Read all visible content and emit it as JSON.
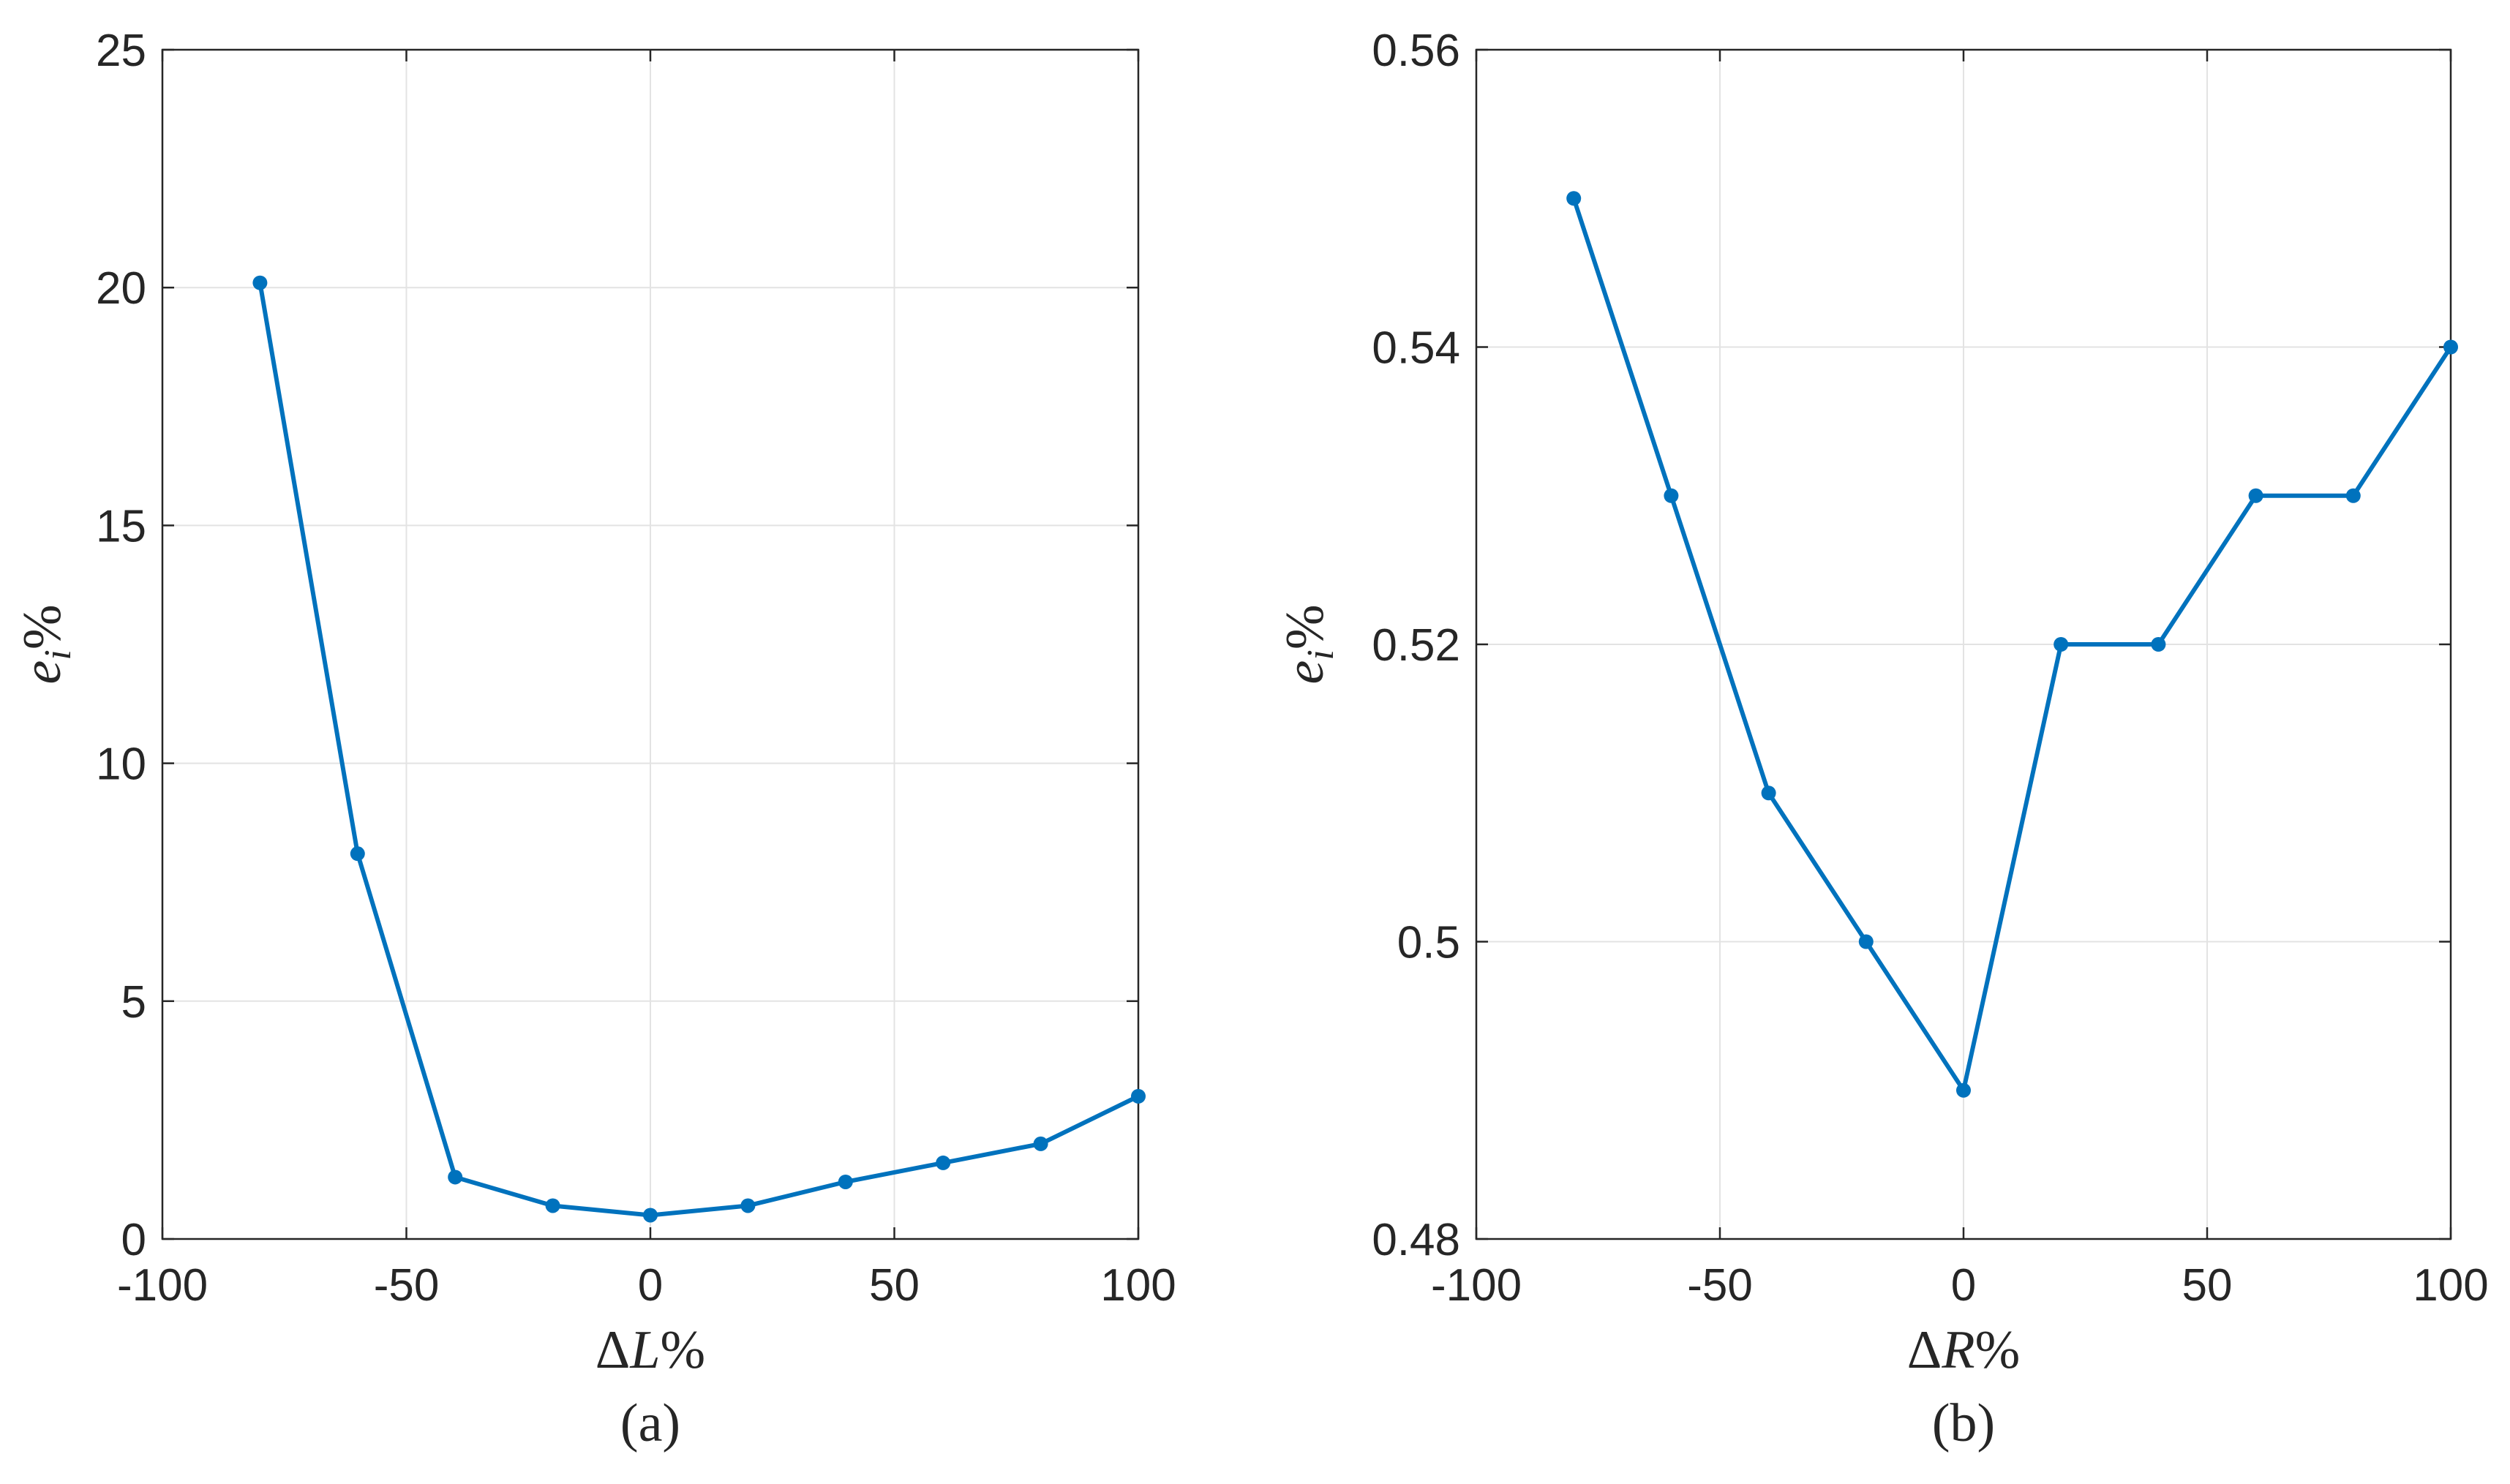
{
  "chart_data": [
    {
      "type": "line",
      "title": "",
      "caption": "(a)",
      "xlabel_prefix": "Δ",
      "xlabel_var": "L",
      "xlabel_suffix": "%",
      "ylabel_var": "e",
      "ylabel_sub": "i",
      "ylabel_suffix": "%",
      "xlim": [
        -100,
        100
      ],
      "ylim": [
        0,
        25
      ],
      "x_ticks": [
        -100,
        -50,
        0,
        50,
        100
      ],
      "y_ticks": [
        0,
        5,
        10,
        15,
        20,
        25
      ],
      "x_tick_labels": [
        "-100",
        "-50",
        "0",
        "50",
        "100"
      ],
      "y_tick_labels": [
        "0",
        "5",
        "10",
        "15",
        "20",
        "25"
      ],
      "grid": true,
      "color": "#0072BD",
      "series": [
        {
          "x": [
            -80,
            -60,
            -40,
            -20,
            0,
            20,
            40,
            60,
            80,
            100
          ],
          "y": [
            20.1,
            8.1,
            1.3,
            0.7,
            0.5,
            0.7,
            1.2,
            1.6,
            2.0,
            3.0
          ]
        }
      ]
    },
    {
      "type": "line",
      "title": "",
      "caption": "(b)",
      "xlabel_prefix": "Δ",
      "xlabel_var": "R",
      "xlabel_suffix": "%",
      "ylabel_var": "e",
      "ylabel_sub": "i",
      "ylabel_suffix": "%",
      "xlim": [
        -100,
        100
      ],
      "ylim": [
        0.48,
        0.56
      ],
      "x_ticks": [
        -100,
        -50,
        0,
        50,
        100
      ],
      "y_ticks": [
        0.48,
        0.5,
        0.52,
        0.54,
        0.56
      ],
      "x_tick_labels": [
        "-100",
        "-50",
        "0",
        "50",
        "100"
      ],
      "y_tick_labels": [
        "0.48",
        "0.5",
        "0.52",
        "0.54",
        "0.56"
      ],
      "grid": true,
      "color": "#0072BD",
      "series": [
        {
          "x": [
            -80,
            -60,
            -40,
            -20,
            0,
            20,
            40,
            60,
            80,
            100
          ],
          "y": [
            0.55,
            0.53,
            0.51,
            0.5,
            0.49,
            0.52,
            0.52,
            0.53,
            0.53,
            0.54
          ]
        }
      ]
    }
  ]
}
